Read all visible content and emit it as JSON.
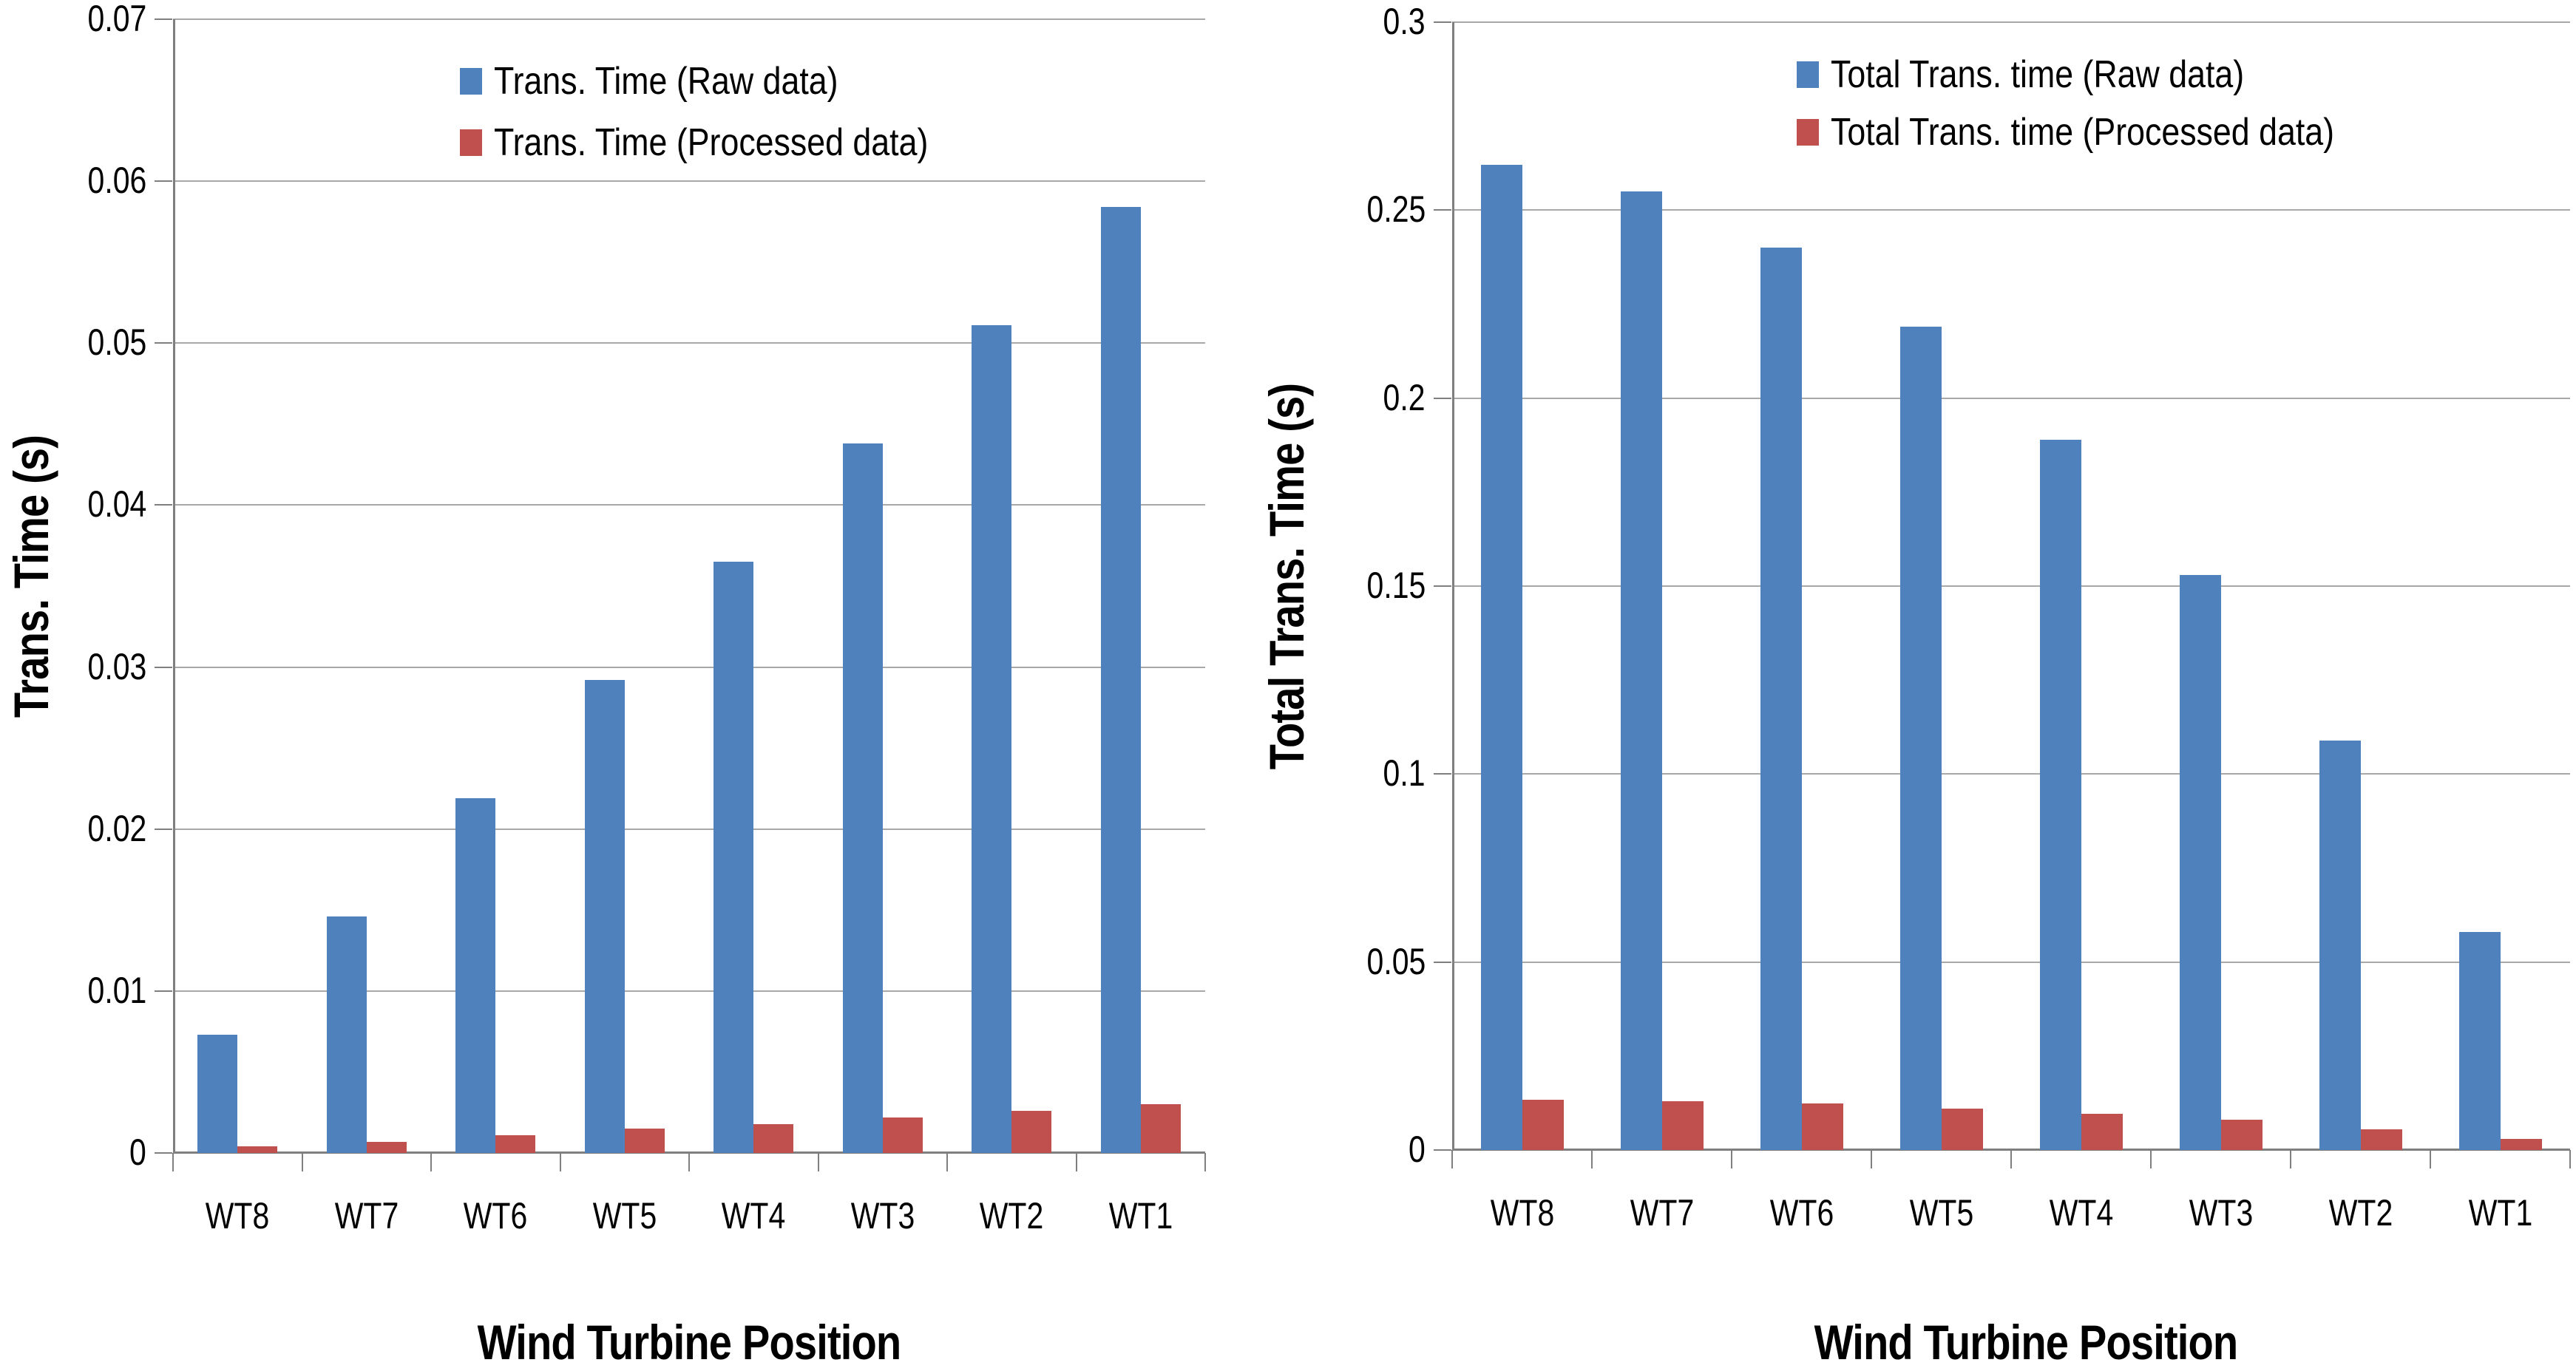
{
  "figure": {
    "background": "#ffffff",
    "axis_color": "#7f7f7f",
    "gridline_color": "#a8a8a8"
  },
  "chart_data": [
    {
      "type": "bar",
      "title": "",
      "xlabel": "Wind Turbine Position",
      "ylabel": "Trans. Time (s)",
      "categories": [
        "WT8",
        "WT7",
        "WT6",
        "WT5",
        "WT4",
        "WT3",
        "WT2",
        "WT1"
      ],
      "series": [
        {
          "name": "Trans. Time (Raw data)",
          "color": "#4f81bd",
          "values": [
            0.0073,
            0.0146,
            0.0219,
            0.0292,
            0.0365,
            0.0438,
            0.0511,
            0.0584
          ]
        },
        {
          "name": "Trans. Time (Processed data)",
          "color": "#c0504d",
          "values": [
            0.0004,
            0.0007,
            0.0011,
            0.0015,
            0.0018,
            0.0022,
            0.0026,
            0.003
          ]
        }
      ],
      "ylim": [
        0,
        0.07
      ],
      "ytick_labels": [
        "0",
        "0.01",
        "0.02",
        "0.03",
        "0.04",
        "0.05",
        "0.06",
        "0.07"
      ],
      "grid": true,
      "legend_position": "inside-top-center"
    },
    {
      "type": "bar",
      "title": "",
      "xlabel": "Wind Turbine Position",
      "ylabel": "Total Trans. Time (s)",
      "categories": [
        "WT8",
        "WT7",
        "WT6",
        "WT5",
        "WT4",
        "WT3",
        "WT2",
        "WT1"
      ],
      "series": [
        {
          "name": "Total Trans. time (Raw data)",
          "color": "#4f81bd",
          "values": [
            0.262,
            0.255,
            0.24,
            0.219,
            0.189,
            0.153,
            0.109,
            0.058
          ]
        },
        {
          "name": "Total Trans. time  (Processed data)",
          "color": "#c0504d",
          "values": [
            0.0133,
            0.0129,
            0.0123,
            0.011,
            0.0097,
            0.008,
            0.0055,
            0.003
          ]
        }
      ],
      "ylim": [
        0,
        0.3
      ],
      "ytick_labels": [
        "0",
        "0.05",
        "0.1",
        "0.15",
        "0.2",
        "0.25",
        "0.3"
      ],
      "grid": true,
      "legend_position": "inside-top-center"
    }
  ]
}
